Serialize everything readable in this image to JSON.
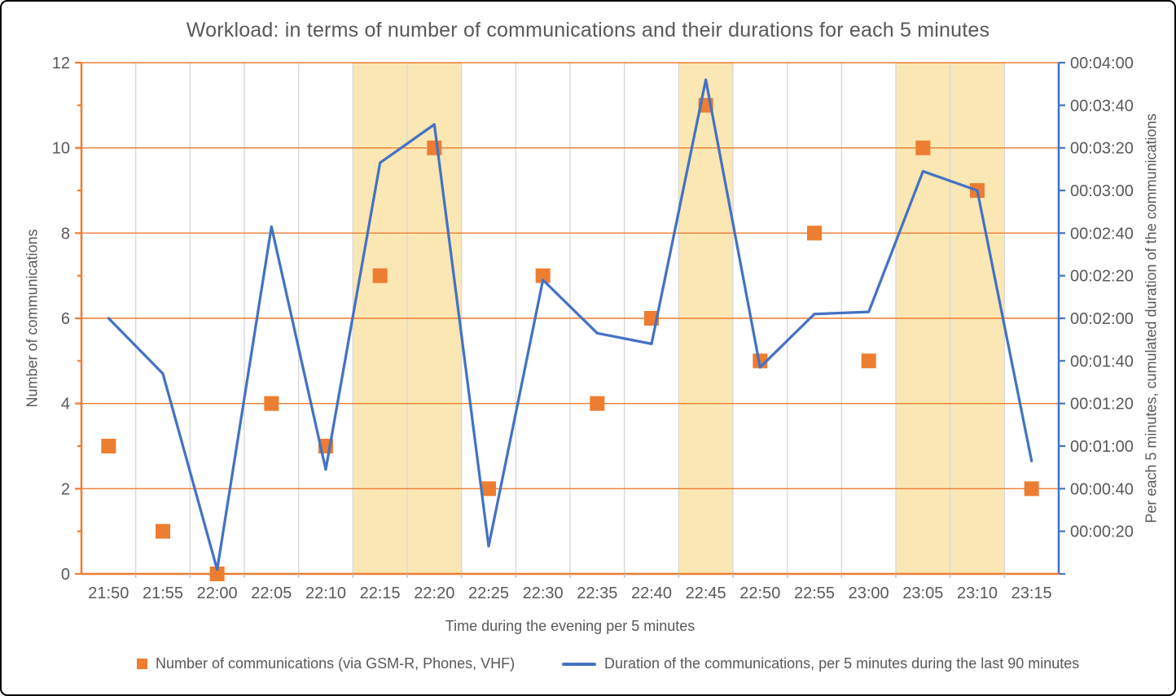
{
  "window": {
    "border_color": "#000000",
    "background": "#FFFFFF"
  },
  "chart_data": {
    "type": "combo (scatter + line, dual axis)",
    "title": "Workload: in terms of number of communications and their durations for each 5 minutes",
    "x_axis": {
      "title": "Time during the evening per 5 minutes",
      "categories": [
        "21:50",
        "21:55",
        "22:00",
        "22:05",
        "22:10",
        "22:15",
        "22:20",
        "22:25",
        "22:30",
        "22:35",
        "22:40",
        "22:45",
        "22:50",
        "22:55",
        "23:00",
        "23:05",
        "23:10",
        "23:15"
      ]
    },
    "y_left_axis": {
      "title": "Number of communications",
      "min": 0,
      "max": 12,
      "major_step": 2,
      "minor_step": 1,
      "tick_labels": [
        "0",
        "2",
        "4",
        "6",
        "8",
        "10",
        "12"
      ],
      "color": "#ED7D31"
    },
    "y_right_axis": {
      "title": "Per each 5 minutes, cumulated duration of the communications",
      "min_seconds": 0,
      "max_seconds": 240,
      "step_seconds": 20,
      "tick_labels": [
        "00:00:20",
        "00:00:40",
        "00:01:00",
        "00:01:20",
        "00:01:40",
        "00:02:00",
        "00:02:20",
        "00:02:40",
        "00:03:00",
        "00:03:20",
        "00:03:40",
        "00:04:00"
      ],
      "color": "#4472C4"
    },
    "series": [
      {
        "name": "Number of communications (via GSM-R, Phones, VHF)",
        "type": "scatter",
        "marker": "square",
        "axis": "left",
        "color": "#ED7D31",
        "values": [
          3,
          1,
          0,
          4,
          3,
          7,
          10,
          2,
          7,
          4,
          6,
          11,
          5,
          8,
          5,
          10,
          9,
          2
        ]
      },
      {
        "name": "Duration of the communications, per 5 minutes during the last 90 minutes",
        "type": "line",
        "axis": "right",
        "color": "#4472C4",
        "values_seconds": [
          120,
          94,
          2,
          163,
          49,
          193,
          211,
          13,
          138,
          113,
          108,
          232,
          97,
          122,
          123,
          189,
          180,
          53
        ],
        "values_hms": [
          "00:02:00",
          "00:01:34",
          "00:00:02",
          "00:02:43",
          "00:00:49",
          "00:03:13",
          "00:03:31",
          "00:00:13",
          "00:02:18",
          "00:01:53",
          "00:01:48",
          "00:03:52",
          "00:01:37",
          "00:02:02",
          "00:02:03",
          "00:03:09",
          "00:03:00",
          "00:00:53"
        ]
      }
    ],
    "highlight_bands": {
      "color": "#FBE7B3",
      "ranges": [
        {
          "from_category": "22:15",
          "to_category": "22:20"
        },
        {
          "from_category": "22:45",
          "to_category": "22:45"
        },
        {
          "from_category": "23:05",
          "to_category": "23:10"
        }
      ]
    },
    "gridlines": {
      "horizontal_color": "#ED7D31",
      "vertical_color": "#D9D9D9",
      "x_minor_tick_color": "#BFBFBF"
    },
    "legend_position": "bottom"
  }
}
